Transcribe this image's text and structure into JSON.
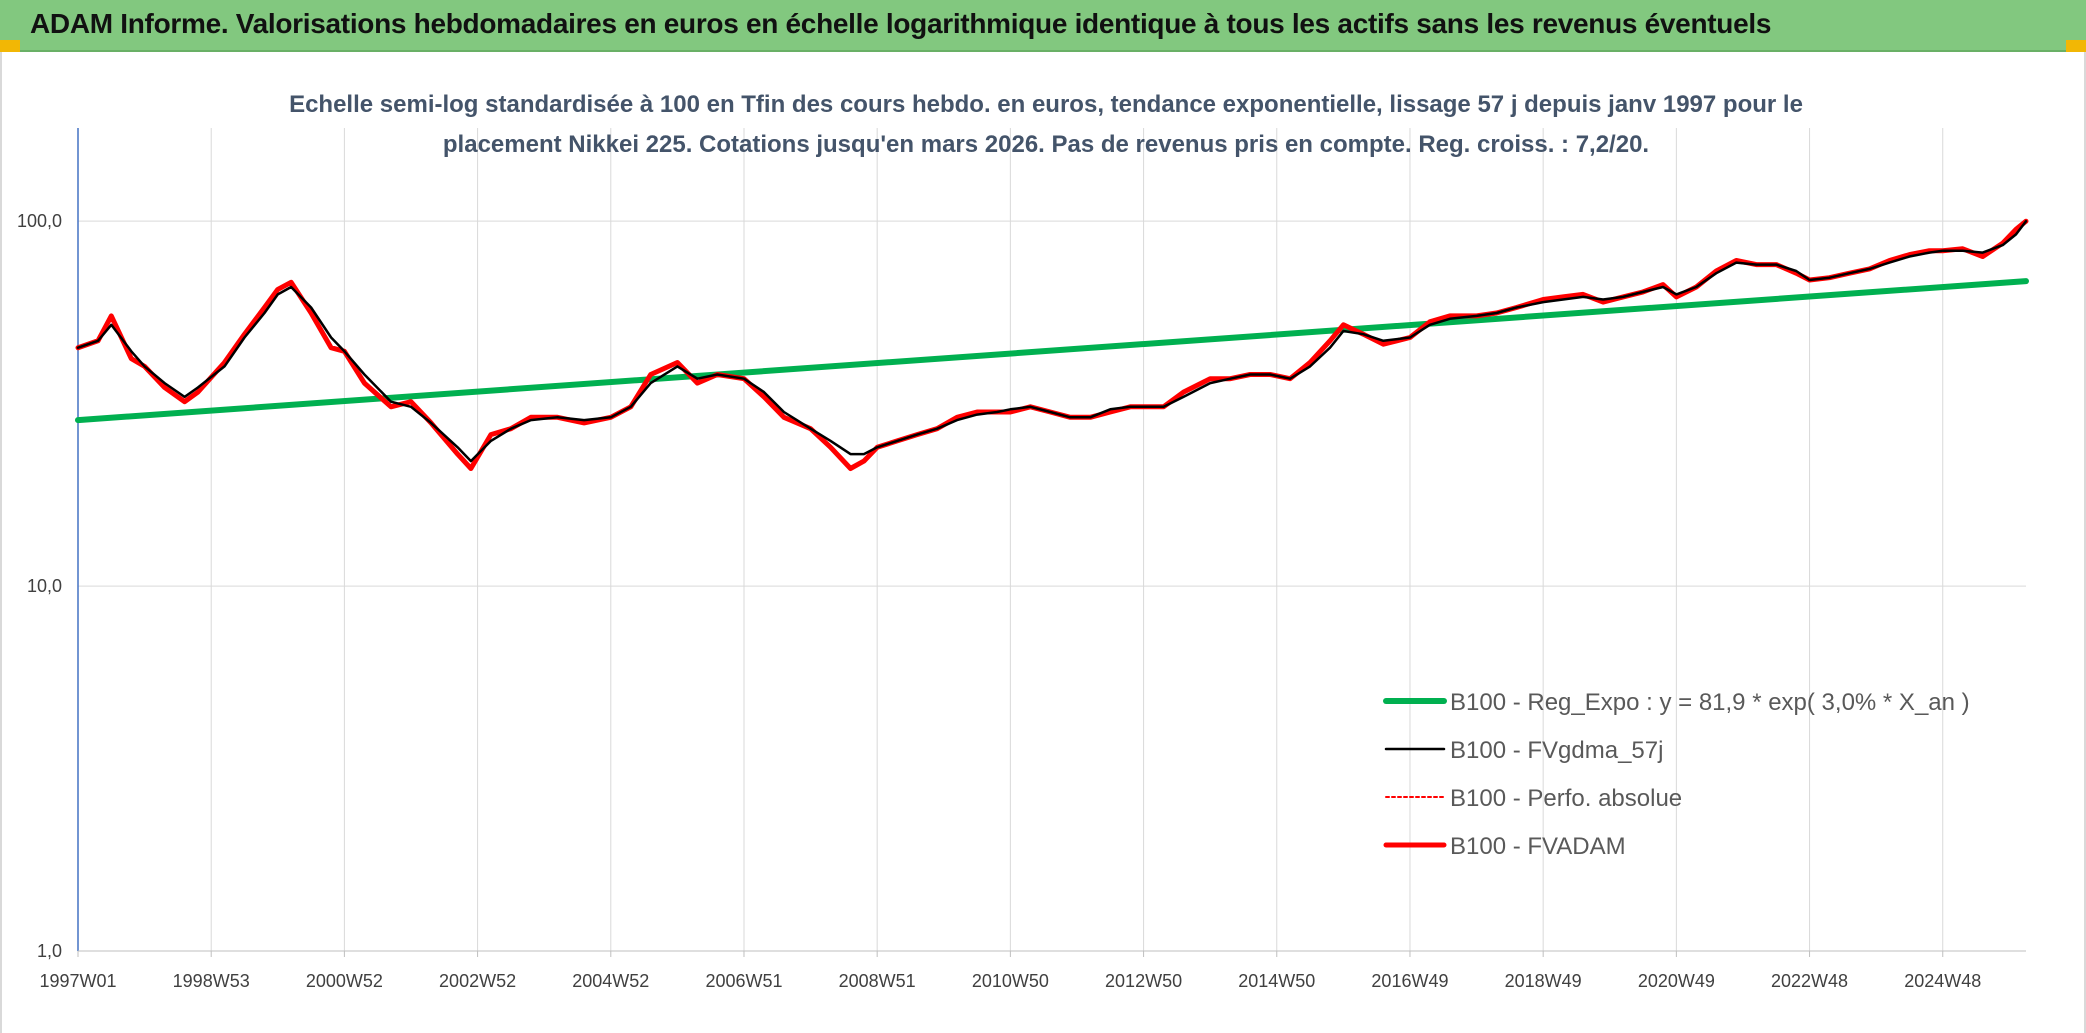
{
  "banner": {
    "title": "ADAM Informe. Valorisations hebdomadaires en euros en échelle logarithmique identique à tous les actifs sans les revenus éventuels",
    "color": "#82c87f",
    "corner_color": "#f2b705"
  },
  "chart_data": {
    "type": "line",
    "title_lines": [
      "Echelle semi-log standardisée à 100 en Tfin des cours hebdo. en euros, tendance exponentielle, lissage 57 j depuis janv 1997 pour le",
      "placement Nikkei 225. Cotations jusqu'en mars 2026. Pas de revenus pris en compte. Reg. croiss. : 7,2/20."
    ],
    "y_scale": "log",
    "ylim": [
      1,
      180
    ],
    "xlim": [
      1997.0,
      2026.25
    ],
    "y_ticks": [
      {
        "value": 1,
        "label": "1,0"
      },
      {
        "value": 10,
        "label": "10,0"
      },
      {
        "value": 100,
        "label": "100,0"
      }
    ],
    "x_ticks": [
      {
        "value": 1997.0,
        "label": "1997W01"
      },
      {
        "value": 1999.0,
        "label": "1998W53"
      },
      {
        "value": 2001.0,
        "label": "2000W52"
      },
      {
        "value": 2003.0,
        "label": "2002W52"
      },
      {
        "value": 2005.0,
        "label": "2004W52"
      },
      {
        "value": 2007.0,
        "label": "2006W51"
      },
      {
        "value": 2009.0,
        "label": "2008W51"
      },
      {
        "value": 2011.0,
        "label": "2010W50"
      },
      {
        "value": 2013.0,
        "label": "2012W50"
      },
      {
        "value": 2015.0,
        "label": "2014W50"
      },
      {
        "value": 2017.0,
        "label": "2016W49"
      },
      {
        "value": 2019.0,
        "label": "2018W49"
      },
      {
        "value": 2021.0,
        "label": "2020W49"
      },
      {
        "value": 2023.0,
        "label": "2022W48"
      },
      {
        "value": 2025.0,
        "label": "2024W48"
      }
    ],
    "grid": "vertical",
    "legend_position": "bottom-right",
    "series": [
      {
        "name": "B100 - Reg_Expo : y = 81,9 * exp( 3,0% *  X_an )",
        "color": "#00b050",
        "style": "line",
        "x": [
          1997.0,
          2026.25
        ],
        "y": [
          28.5,
          68.5
        ]
      },
      {
        "name": "B100 - FVgdma_57j",
        "color": "#000000",
        "style": "line",
        "x": [
          1997.0,
          1997.3,
          1997.5,
          1997.8,
          1998.0,
          1998.3,
          1998.6,
          1998.8,
          1999.2,
          1999.5,
          1999.8,
          2000.0,
          2000.2,
          2000.5,
          2000.8,
          2001.0,
          2001.3,
          2001.7,
          2002.0,
          2002.3,
          2002.7,
          2002.9,
          2003.2,
          2003.5,
          2003.8,
          2004.2,
          2004.6,
          2005.0,
          2005.3,
          2005.6,
          2006.0,
          2006.3,
          2006.6,
          2007.0,
          2007.3,
          2007.6,
          2008.0,
          2008.3,
          2008.6,
          2008.8,
          2009.0,
          2009.3,
          2009.6,
          2009.9,
          2010.2,
          2010.5,
          2010.8,
          2011.0,
          2011.3,
          2011.6,
          2011.9,
          2012.2,
          2012.5,
          2012.8,
          2013.0,
          2013.3,
          2013.6,
          2014.0,
          2014.3,
          2014.6,
          2014.9,
          2015.2,
          2015.5,
          2015.8,
          2016.0,
          2016.3,
          2016.6,
          2017.0,
          2017.3,
          2017.6,
          2018.0,
          2018.3,
          2018.6,
          2019.0,
          2019.3,
          2019.6,
          2019.9,
          2020.2,
          2020.5,
          2020.8,
          2021.0,
          2021.3,
          2021.6,
          2021.9,
          2022.2,
          2022.5,
          2022.8,
          2023.0,
          2023.3,
          2023.6,
          2023.9,
          2024.2,
          2024.5,
          2024.8,
          2025.0,
          2025.3,
          2025.6,
          2025.9,
          2026.1,
          2026.25
        ],
        "y": [
          45,
          47,
          52,
          44,
          40,
          36,
          33,
          35,
          40,
          48,
          56,
          63,
          66,
          58,
          48,
          44,
          38,
          32,
          31,
          28,
          24,
          22,
          25,
          27,
          28.5,
          29,
          28.5,
          29,
          31,
          36,
          40,
          37,
          38,
          37,
          34,
          30,
          27,
          25,
          23,
          23,
          24,
          25,
          26,
          27,
          28.5,
          29.5,
          30,
          30.5,
          31,
          30,
          29,
          29,
          30.5,
          31,
          31,
          31,
          33,
          36,
          37,
          38,
          38,
          37,
          40,
          45,
          50,
          49,
          47,
          48,
          52,
          54,
          55,
          56,
          58,
          60,
          61,
          62,
          61,
          62,
          64,
          66,
          63,
          66,
          72,
          77,
          76,
          76,
          73,
          69,
          70,
          72,
          74,
          77,
          80,
          82,
          83,
          83,
          82,
          86,
          92,
          100
        ]
      },
      {
        "name": "B100 - Perfo. absolue",
        "color": "#ff0000",
        "style": "dotted",
        "x": [
          1997.0,
          1997.3,
          1997.5,
          1997.8,
          1998.0,
          1998.3,
          1998.6,
          1998.8,
          1999.2,
          1999.5,
          1999.8,
          2000.0,
          2000.2,
          2000.5,
          2000.8,
          2001.0,
          2001.3,
          2001.7,
          2002.0,
          2002.3,
          2002.7,
          2002.9,
          2003.2,
          2003.5,
          2003.8,
          2004.2,
          2004.6,
          2005.0,
          2005.3,
          2005.6,
          2006.0,
          2006.3,
          2006.6,
          2007.0,
          2007.3,
          2007.6,
          2008.0,
          2008.3,
          2008.6,
          2008.8,
          2009.0,
          2009.3,
          2009.6,
          2009.9,
          2010.2,
          2010.5,
          2010.8,
          2011.0,
          2011.3,
          2011.6,
          2011.9,
          2012.2,
          2012.5,
          2012.8,
          2013.0,
          2013.3,
          2013.6,
          2014.0,
          2014.3,
          2014.6,
          2014.9,
          2015.2,
          2015.5,
          2015.8,
          2016.0,
          2016.3,
          2016.6,
          2017.0,
          2017.3,
          2017.6,
          2018.0,
          2018.3,
          2018.6,
          2019.0,
          2019.3,
          2019.6,
          2019.9,
          2020.2,
          2020.5,
          2020.8,
          2021.0,
          2021.3,
          2021.6,
          2021.9,
          2022.2,
          2022.5,
          2022.8,
          2023.0,
          2023.3,
          2023.6,
          2023.9,
          2024.2,
          2024.5,
          2024.8,
          2025.0,
          2025.3,
          2025.6,
          2025.9,
          2026.1,
          2026.25
        ],
        "y": [
          45,
          47,
          55,
          42,
          40,
          35,
          32,
          34,
          41,
          49,
          58,
          65,
          68,
          56,
          45,
          44,
          36,
          31,
          32,
          28,
          23,
          21,
          26,
          27,
          29,
          29,
          28,
          29,
          31,
          38,
          41,
          36,
          38,
          37,
          33,
          29,
          27,
          24,
          21,
          22,
          24,
          25,
          26,
          27,
          29,
          30,
          30,
          30,
          31,
          30,
          29,
          29,
          30,
          31,
          31,
          31,
          34,
          37,
          37,
          38,
          38,
          37,
          41,
          47,
          52,
          49,
          46,
          48,
          53,
          55,
          55,
          56,
          58,
          61,
          62,
          63,
          60,
          62,
          64,
          67,
          62,
          66,
          73,
          78,
          76,
          76,
          72,
          69,
          70,
          72,
          74,
          78,
          81,
          83,
          83,
          84,
          80,
          87,
          95,
          100
        ]
      },
      {
        "name": "B100 - FVADAM",
        "color": "#ff0000",
        "style": "line",
        "x": [
          1997.0,
          1997.3,
          1997.5,
          1997.8,
          1998.0,
          1998.3,
          1998.6,
          1998.8,
          1999.2,
          1999.5,
          1999.8,
          2000.0,
          2000.2,
          2000.5,
          2000.8,
          2001.0,
          2001.3,
          2001.7,
          2002.0,
          2002.3,
          2002.7,
          2002.9,
          2003.2,
          2003.5,
          2003.8,
          2004.2,
          2004.6,
          2005.0,
          2005.3,
          2005.6,
          2006.0,
          2006.3,
          2006.6,
          2007.0,
          2007.3,
          2007.6,
          2008.0,
          2008.3,
          2008.6,
          2008.8,
          2009.0,
          2009.3,
          2009.6,
          2009.9,
          2010.2,
          2010.5,
          2010.8,
          2011.0,
          2011.3,
          2011.6,
          2011.9,
          2012.2,
          2012.5,
          2012.8,
          2013.0,
          2013.3,
          2013.6,
          2014.0,
          2014.3,
          2014.6,
          2014.9,
          2015.2,
          2015.5,
          2015.8,
          2016.0,
          2016.3,
          2016.6,
          2017.0,
          2017.3,
          2017.6,
          2018.0,
          2018.3,
          2018.6,
          2019.0,
          2019.3,
          2019.6,
          2019.9,
          2020.2,
          2020.5,
          2020.8,
          2021.0,
          2021.3,
          2021.6,
          2021.9,
          2022.2,
          2022.5,
          2022.8,
          2023.0,
          2023.3,
          2023.6,
          2023.9,
          2024.2,
          2024.5,
          2024.8,
          2025.0,
          2025.3,
          2025.6,
          2025.9,
          2026.1,
          2026.25
        ],
        "y": [
          45,
          47,
          55,
          42,
          40,
          35,
          32,
          34,
          41,
          49,
          58,
          65,
          68,
          56,
          45,
          44,
          36,
          31,
          32,
          28,
          23,
          21,
          26,
          27,
          29,
          29,
          28,
          29,
          31,
          38,
          41,
          36,
          38,
          37,
          33,
          29,
          27,
          24,
          21,
          22,
          24,
          25,
          26,
          27,
          29,
          30,
          30,
          30,
          31,
          30,
          29,
          29,
          30,
          31,
          31,
          31,
          34,
          37,
          37,
          38,
          38,
          37,
          41,
          47,
          52,
          49,
          46,
          48,
          53,
          55,
          55,
          56,
          58,
          61,
          62,
          63,
          60,
          62,
          64,
          67,
          62,
          66,
          73,
          78,
          76,
          76,
          72,
          69,
          70,
          72,
          74,
          78,
          81,
          83,
          83,
          84,
          80,
          87,
          95,
          100
        ]
      }
    ]
  }
}
